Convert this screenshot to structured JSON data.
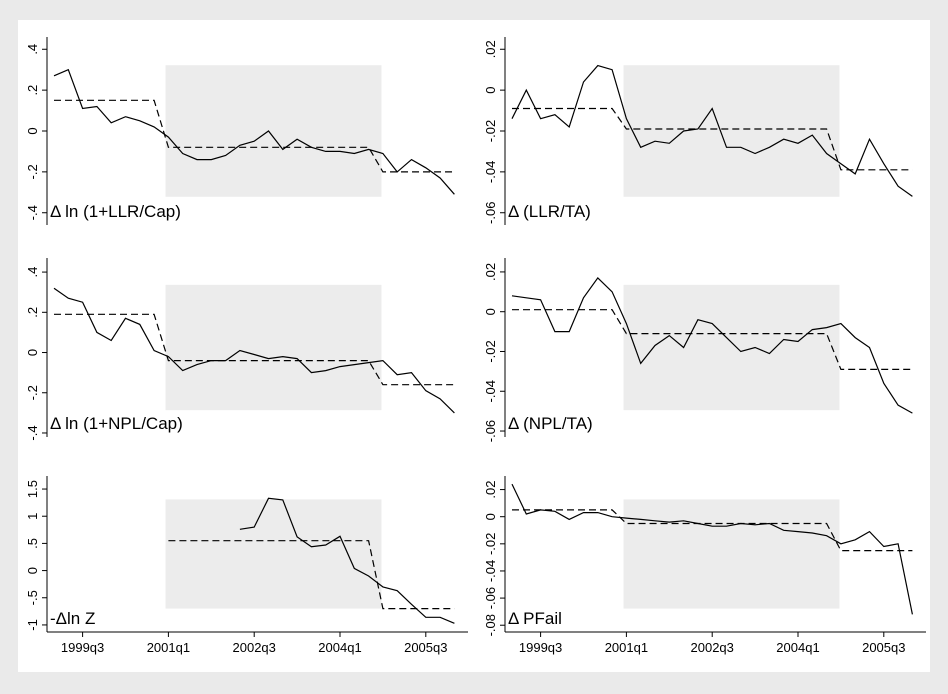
{
  "chart_data": [
    {
      "type": "line",
      "label": "Δ ln (1+LLR/Cap)",
      "categories": [
        null,
        null,
        null,
        null,
        null,
        null,
        null,
        null,
        null,
        null,
        null,
        null,
        null,
        null,
        null,
        null,
        null,
        null,
        null,
        null,
        null,
        null,
        null,
        null,
        null,
        null,
        null,
        null,
        null
      ],
      "series": [
        {
          "color": "#000000",
          "dash": false,
          "values": [
            0.27,
            0.3,
            0.11,
            0.12,
            0.04,
            0.07,
            0.05,
            0.02,
            -0.03,
            -0.11,
            -0.14,
            -0.14,
            -0.12,
            -0.07,
            -0.05,
            0.0,
            -0.09,
            -0.04,
            -0.08,
            -0.1,
            -0.1,
            -0.11,
            -0.09,
            -0.11,
            -0.2,
            -0.14,
            -0.18,
            -0.23,
            -0.31
          ]
        },
        {
          "color": "#000000",
          "dash": true,
          "values": [
            0.15,
            0.15,
            0.15,
            0.15,
            0.15,
            0.15,
            0.15,
            0.15,
            -0.08,
            -0.08,
            -0.08,
            -0.08,
            -0.08,
            -0.08,
            -0.08,
            -0.08,
            -0.08,
            -0.08,
            -0.08,
            -0.08,
            -0.08,
            -0.08,
            -0.08,
            -0.2,
            -0.2,
            -0.2,
            -0.2,
            -0.2,
            -0.2
          ]
        }
      ],
      "ylim": [
        -0.46,
        0.46
      ],
      "yticks": [
        {
          "value": -0.4,
          "label": "-.4"
        },
        {
          "value": -0.2,
          "label": "-.2"
        },
        0,
        {
          "value": 0.2,
          "label": ".2"
        },
        {
          "value": 0.4,
          "label": ".4"
        }
      ]
    },
    {
      "type": "line",
      "label": "Δ (LLR/TA)",
      "categories": [
        null,
        null,
        null,
        null,
        null,
        null,
        null,
        null,
        null,
        null,
        null,
        null,
        null,
        null,
        null,
        null,
        null,
        null,
        null,
        null,
        null,
        null,
        null,
        null,
        null,
        null,
        null,
        null,
        null
      ],
      "series": [
        {
          "color": "#000000",
          "dash": false,
          "values": [
            -0.014,
            0.0,
            -0.014,
            -0.012,
            -0.018,
            0.004,
            0.012,
            0.01,
            -0.014,
            -0.028,
            -0.025,
            -0.026,
            -0.02,
            -0.019,
            -0.009,
            -0.028,
            -0.028,
            -0.031,
            -0.028,
            -0.024,
            -0.026,
            -0.022,
            -0.031,
            -0.036,
            -0.041,
            -0.024,
            -0.036,
            -0.047,
            -0.052
          ]
        },
        {
          "color": "#000000",
          "dash": true,
          "values": [
            -0.009,
            -0.009,
            -0.009,
            -0.009,
            -0.009,
            -0.009,
            -0.009,
            -0.009,
            -0.019,
            -0.019,
            -0.019,
            -0.019,
            -0.019,
            -0.019,
            -0.019,
            -0.019,
            -0.019,
            -0.019,
            -0.019,
            -0.019,
            -0.019,
            -0.019,
            -0.019,
            -0.039,
            -0.039,
            -0.039,
            -0.039,
            -0.039,
            -0.039
          ]
        }
      ],
      "ylim": [
        -0.066,
        0.026
      ],
      "yticks": [
        {
          "value": -0.06,
          "label": "-.06"
        },
        {
          "value": -0.04,
          "label": "-.04"
        },
        {
          "value": -0.02,
          "label": "-.02"
        },
        0,
        {
          "value": 0.02,
          "label": ".02"
        }
      ]
    },
    {
      "type": "line",
      "label": "Δ ln (1+NPL/Cap)",
      "categories": [
        null,
        null,
        null,
        null,
        null,
        null,
        null,
        null,
        null,
        null,
        null,
        null,
        null,
        null,
        null,
        null,
        null,
        null,
        null,
        null,
        null,
        null,
        null,
        null,
        null,
        null,
        null,
        null,
        null
      ],
      "series": [
        {
          "color": "#000000",
          "dash": false,
          "values": [
            0.32,
            0.27,
            0.25,
            0.1,
            0.06,
            0.17,
            0.14,
            0.01,
            -0.02,
            -0.09,
            -0.06,
            -0.04,
            -0.04,
            0.01,
            -0.01,
            -0.03,
            -0.02,
            -0.03,
            -0.1,
            -0.09,
            -0.07,
            -0.06,
            -0.05,
            -0.04,
            -0.11,
            -0.1,
            -0.19,
            -0.23,
            -0.3
          ]
        },
        {
          "color": "#000000",
          "dash": true,
          "values": [
            0.19,
            0.19,
            0.19,
            0.19,
            0.19,
            0.19,
            0.19,
            0.19,
            -0.04,
            -0.04,
            -0.04,
            -0.04,
            -0.04,
            -0.04,
            -0.04,
            -0.04,
            -0.04,
            -0.04,
            -0.04,
            -0.04,
            -0.04,
            -0.04,
            -0.04,
            -0.16,
            -0.16,
            -0.16,
            -0.16,
            -0.16,
            -0.16
          ]
        }
      ],
      "ylim": [
        -0.42,
        0.47
      ],
      "yticks": [
        {
          "value": -0.4,
          "label": "-.4"
        },
        {
          "value": -0.2,
          "label": "-.2"
        },
        0,
        {
          "value": 0.2,
          "label": ".2"
        },
        {
          "value": 0.4,
          "label": ".4"
        }
      ]
    },
    {
      "type": "line",
      "label": "Δ (NPL/TA)",
      "categories": [
        null,
        null,
        null,
        null,
        null,
        null,
        null,
        null,
        null,
        null,
        null,
        null,
        null,
        null,
        null,
        null,
        null,
        null,
        null,
        null,
        null,
        null,
        null,
        null,
        null,
        null,
        null,
        null,
        null
      ],
      "series": [
        {
          "color": "#000000",
          "dash": false,
          "values": [
            0.008,
            0.007,
            0.006,
            -0.01,
            -0.01,
            0.007,
            0.017,
            0.01,
            -0.006,
            -0.026,
            -0.017,
            -0.012,
            -0.018,
            -0.004,
            -0.006,
            -0.013,
            -0.02,
            -0.018,
            -0.021,
            -0.014,
            -0.015,
            -0.009,
            -0.008,
            -0.006,
            -0.013,
            -0.018,
            -0.036,
            -0.047,
            -0.051
          ]
        },
        {
          "color": "#000000",
          "dash": true,
          "values": [
            0.001,
            0.001,
            0.001,
            0.001,
            0.001,
            0.001,
            0.001,
            0.001,
            -0.011,
            -0.011,
            -0.011,
            -0.011,
            -0.011,
            -0.011,
            -0.011,
            -0.011,
            -0.011,
            -0.011,
            -0.011,
            -0.011,
            -0.011,
            -0.011,
            -0.011,
            -0.029,
            -0.029,
            -0.029,
            -0.029,
            -0.029,
            -0.029
          ]
        }
      ],
      "ylim": [
        -0.063,
        0.027
      ],
      "yticks": [
        {
          "value": -0.06,
          "label": "-.06"
        },
        {
          "value": -0.04,
          "label": "-.04"
        },
        {
          "value": -0.02,
          "label": "-.02"
        },
        0,
        {
          "value": 0.02,
          "label": ".02"
        }
      ]
    },
    {
      "type": "line",
      "label": "-Δln Z",
      "categories": [
        null,
        null,
        "1999q3",
        null,
        null,
        null,
        null,
        null,
        "2001q1",
        null,
        null,
        null,
        null,
        null,
        "2002q3",
        null,
        null,
        null,
        null,
        null,
        "2004q1",
        null,
        null,
        null,
        null,
        null,
        "2005q3",
        null,
        null
      ],
      "series": [
        {
          "color": "#000000",
          "dash": false,
          "values": [
            null,
            null,
            null,
            null,
            null,
            null,
            null,
            null,
            null,
            null,
            null,
            null,
            null,
            0.76,
            0.8,
            1.33,
            1.3,
            0.62,
            0.44,
            0.47,
            0.63,
            0.04,
            -0.1,
            -0.3,
            -0.37,
            -0.62,
            -0.86,
            -0.86,
            -0.97
          ]
        },
        {
          "color": "#000000",
          "dash": true,
          "values": [
            null,
            null,
            null,
            null,
            null,
            null,
            null,
            null,
            0.55,
            0.55,
            0.55,
            0.55,
            0.55,
            0.55,
            0.55,
            0.55,
            0.55,
            0.55,
            0.55,
            0.55,
            0.55,
            0.55,
            0.55,
            -0.7,
            -0.7,
            -0.7,
            -0.7,
            -0.7,
            -0.7
          ]
        }
      ],
      "ylim": [
        -1.13,
        1.74
      ],
      "yticks": [
        -1,
        {
          "value": -0.5,
          "label": "-.5"
        },
        0,
        {
          "value": 0.5,
          "label": ".5"
        },
        1,
        1.5
      ]
    },
    {
      "type": "line",
      "label": "Δ PFail",
      "categories": [
        null,
        null,
        "1999q3",
        null,
        null,
        null,
        null,
        null,
        "2001q1",
        null,
        null,
        null,
        null,
        null,
        "2002q3",
        null,
        null,
        null,
        null,
        null,
        "2004q1",
        null,
        null,
        null,
        null,
        null,
        "2005q3",
        null,
        null
      ],
      "series": [
        {
          "color": "#000000",
          "dash": false,
          "values": [
            0.024,
            0.002,
            0.005,
            0.004,
            -0.002,
            0.003,
            0.003,
            0.0,
            -0.001,
            -0.002,
            -0.003,
            -0.004,
            -0.003,
            -0.005,
            -0.007,
            -0.007,
            -0.005,
            -0.006,
            -0.005,
            -0.01,
            -0.011,
            -0.012,
            -0.014,
            -0.02,
            -0.017,
            -0.011,
            -0.022,
            -0.02,
            -0.072
          ]
        },
        {
          "color": "#000000",
          "dash": true,
          "values": [
            0.005,
            0.005,
            0.005,
            0.005,
            0.005,
            0.005,
            0.005,
            0.005,
            -0.005,
            -0.005,
            -0.005,
            -0.005,
            -0.005,
            -0.005,
            -0.005,
            -0.005,
            -0.005,
            -0.005,
            -0.005,
            -0.005,
            -0.005,
            -0.005,
            -0.005,
            -0.025,
            -0.025,
            -0.025,
            -0.025,
            -0.025,
            -0.025
          ]
        }
      ],
      "ylim": [
        -0.085,
        0.03
      ],
      "yticks": [
        {
          "value": -0.08,
          "label": "-.08"
        },
        {
          "value": -0.06,
          "label": "-.06"
        },
        {
          "value": -0.04,
          "label": "-.04"
        },
        {
          "value": -0.02,
          "label": "-.02"
        },
        0,
        {
          "value": 0.02,
          "label": ".02"
        }
      ]
    }
  ]
}
